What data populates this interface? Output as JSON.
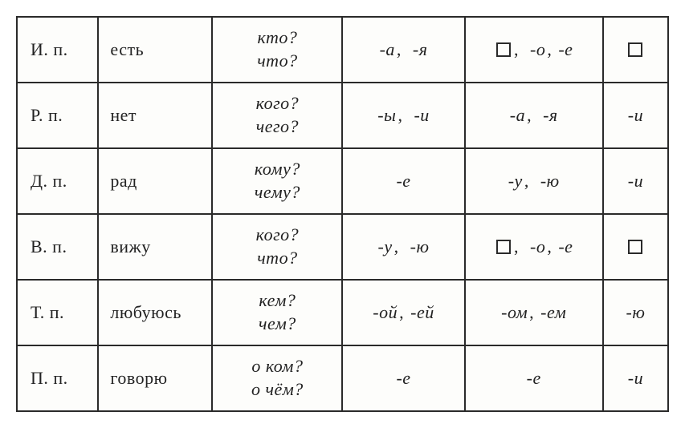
{
  "table": {
    "border_color": "#2a2a2a",
    "background_color": "#fdfdfb",
    "text_color": "#222222",
    "font_family": "Times New Roman",
    "rows": [
      {
        "case": "И.  п.",
        "word": "есть",
        "q1": "кто?",
        "q2": "что?",
        "ends1_a": "-а",
        "ends1_b": "-я",
        "ends2_box": true,
        "ends2_a": "-о",
        "ends2_b": "-е",
        "ends3_box": true,
        "ends3": ""
      },
      {
        "case": "Р.  п.",
        "word": "нет",
        "q1": "кого?",
        "q2": "чего?",
        "ends1_a": "-ы",
        "ends1_b": "-и",
        "ends2_box": false,
        "ends2_a": "-а",
        "ends2_b": "-я",
        "ends3_box": false,
        "ends3": "-и"
      },
      {
        "case": "Д.  п.",
        "word": "рад",
        "q1": "кому?",
        "q2": "чему?",
        "ends1_single": "-е",
        "ends2_box": false,
        "ends2_a": "-у",
        "ends2_b": "-ю",
        "ends3_box": false,
        "ends3": "-и"
      },
      {
        "case": "В.  п.",
        "word": "вижу",
        "q1": "кого?",
        "q2": "что?",
        "ends1_a": "-у",
        "ends1_b": "-ю",
        "ends2_box": true,
        "ends2_a": "-о",
        "ends2_b": "-е",
        "ends3_box": true,
        "ends3": ""
      },
      {
        "case": "Т.  п.",
        "word": "любуюсь",
        "q1": "кем?",
        "q2": "чем?",
        "ends1_a": "-ой",
        "ends1_b": "-ей",
        "ends2_box": false,
        "ends2_a": "-ом",
        "ends2_b": "-ем",
        "ends3_box": false,
        "ends3": "-ю"
      },
      {
        "case": "П.  п.",
        "word": "говорю",
        "q1": "о  ком?",
        "q2": "о  чём?",
        "ends1_single": "-е",
        "ends2_single": "-е",
        "ends3_box": false,
        "ends3": "-и"
      }
    ]
  }
}
